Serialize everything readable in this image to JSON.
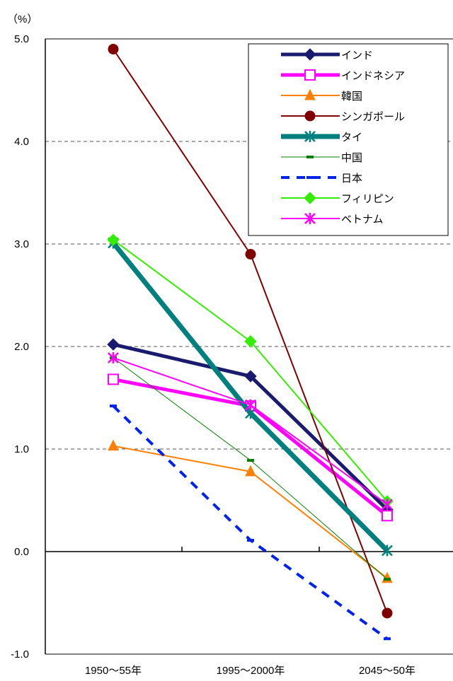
{
  "chart_data": {
    "type": "line",
    "unit_label": "（%）",
    "categories": [
      "1950～55年",
      "1995～2000年",
      "2045～50年"
    ],
    "ylim": [
      -1.0,
      5.0
    ],
    "ytick_labels": [
      "5.0",
      "4.0",
      "3.0",
      "2.0",
      "1.0",
      "0.0",
      "-1.0"
    ],
    "grid": "horizontal-dashed",
    "legend_position": "top-right",
    "series": [
      {
        "name": "インド",
        "values": [
          2.02,
          1.71,
          0.41
        ],
        "color": "#1a1a6e",
        "marker": "diamond",
        "line": "solid-thick"
      },
      {
        "name": "インドネシア",
        "values": [
          1.68,
          1.42,
          0.35
        ],
        "color": "#ff00ff",
        "marker": "open-square",
        "line": "solid-thick"
      },
      {
        "name": "韓国",
        "values": [
          1.03,
          0.78,
          -0.26
        ],
        "color": "#ff7f00",
        "marker": "triangle",
        "line": "solid"
      },
      {
        "name": "シンガポール",
        "values": [
          4.9,
          2.9,
          -0.6
        ],
        "color": "#800000",
        "marker": "circle",
        "line": "solid"
      },
      {
        "name": "タイ",
        "values": [
          3.01,
          1.35,
          0.01
        ],
        "color": "#007f7f",
        "marker": "asterisk",
        "line": "solid-thicker"
      },
      {
        "name": "中国",
        "values": [
          1.89,
          0.89,
          -0.27
        ],
        "color": "#007f00",
        "marker": "dash",
        "line": "solid-thin"
      },
      {
        "name": "日本",
        "values": [
          1.42,
          0.11,
          -0.85
        ],
        "color": "#0022ee",
        "marker": "dash",
        "line": "dashed"
      },
      {
        "name": "フィリピン",
        "values": [
          3.04,
          2.05,
          0.49
        ],
        "color": "#33ee00",
        "marker": "diamond",
        "line": "solid"
      },
      {
        "name": "ベトナム",
        "values": [
          1.89,
          1.43,
          0.46
        ],
        "color": "#ff00ff",
        "marker": "asterisk",
        "line": "solid"
      }
    ]
  }
}
